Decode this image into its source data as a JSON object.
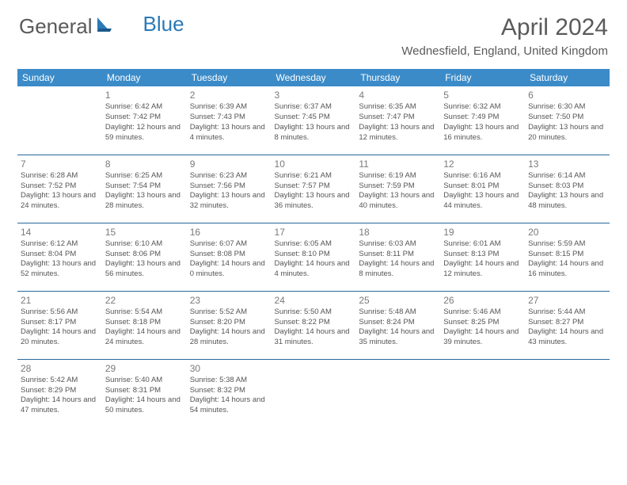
{
  "logo": {
    "text1": "General",
    "text2": "Blue"
  },
  "title": "April 2024",
  "location": "Wednesfield, England, United Kingdom",
  "colors": {
    "header_bg": "#3b8bc8",
    "header_text": "#ffffff",
    "border": "#2a6a9a",
    "body_text": "#555555",
    "daynum": "#7a7a7a",
    "title_text": "#5a5a5a",
    "logo_blue": "#2a7ab8",
    "background": "#ffffff"
  },
  "typography": {
    "title_fontsize": 30,
    "location_fontsize": 15,
    "header_fontsize": 12,
    "daynum_fontsize": 12,
    "cell_fontsize": 9.5,
    "logo_fontsize": 26
  },
  "columns": [
    "Sunday",
    "Monday",
    "Tuesday",
    "Wednesday",
    "Thursday",
    "Friday",
    "Saturday"
  ],
  "weeks": [
    [
      null,
      {
        "n": "1",
        "sr": "6:42 AM",
        "ss": "7:42 PM",
        "dl": "12 hours and 59 minutes."
      },
      {
        "n": "2",
        "sr": "6:39 AM",
        "ss": "7:43 PM",
        "dl": "13 hours and 4 minutes."
      },
      {
        "n": "3",
        "sr": "6:37 AM",
        "ss": "7:45 PM",
        "dl": "13 hours and 8 minutes."
      },
      {
        "n": "4",
        "sr": "6:35 AM",
        "ss": "7:47 PM",
        "dl": "13 hours and 12 minutes."
      },
      {
        "n": "5",
        "sr": "6:32 AM",
        "ss": "7:49 PM",
        "dl": "13 hours and 16 minutes."
      },
      {
        "n": "6",
        "sr": "6:30 AM",
        "ss": "7:50 PM",
        "dl": "13 hours and 20 minutes."
      }
    ],
    [
      {
        "n": "7",
        "sr": "6:28 AM",
        "ss": "7:52 PM",
        "dl": "13 hours and 24 minutes."
      },
      {
        "n": "8",
        "sr": "6:25 AM",
        "ss": "7:54 PM",
        "dl": "13 hours and 28 minutes."
      },
      {
        "n": "9",
        "sr": "6:23 AM",
        "ss": "7:56 PM",
        "dl": "13 hours and 32 minutes."
      },
      {
        "n": "10",
        "sr": "6:21 AM",
        "ss": "7:57 PM",
        "dl": "13 hours and 36 minutes."
      },
      {
        "n": "11",
        "sr": "6:19 AM",
        "ss": "7:59 PM",
        "dl": "13 hours and 40 minutes."
      },
      {
        "n": "12",
        "sr": "6:16 AM",
        "ss": "8:01 PM",
        "dl": "13 hours and 44 minutes."
      },
      {
        "n": "13",
        "sr": "6:14 AM",
        "ss": "8:03 PM",
        "dl": "13 hours and 48 minutes."
      }
    ],
    [
      {
        "n": "14",
        "sr": "6:12 AM",
        "ss": "8:04 PM",
        "dl": "13 hours and 52 minutes."
      },
      {
        "n": "15",
        "sr": "6:10 AM",
        "ss": "8:06 PM",
        "dl": "13 hours and 56 minutes."
      },
      {
        "n": "16",
        "sr": "6:07 AM",
        "ss": "8:08 PM",
        "dl": "14 hours and 0 minutes."
      },
      {
        "n": "17",
        "sr": "6:05 AM",
        "ss": "8:10 PM",
        "dl": "14 hours and 4 minutes."
      },
      {
        "n": "18",
        "sr": "6:03 AM",
        "ss": "8:11 PM",
        "dl": "14 hours and 8 minutes."
      },
      {
        "n": "19",
        "sr": "6:01 AM",
        "ss": "8:13 PM",
        "dl": "14 hours and 12 minutes."
      },
      {
        "n": "20",
        "sr": "5:59 AM",
        "ss": "8:15 PM",
        "dl": "14 hours and 16 minutes."
      }
    ],
    [
      {
        "n": "21",
        "sr": "5:56 AM",
        "ss": "8:17 PM",
        "dl": "14 hours and 20 minutes."
      },
      {
        "n": "22",
        "sr": "5:54 AM",
        "ss": "8:18 PM",
        "dl": "14 hours and 24 minutes."
      },
      {
        "n": "23",
        "sr": "5:52 AM",
        "ss": "8:20 PM",
        "dl": "14 hours and 28 minutes."
      },
      {
        "n": "24",
        "sr": "5:50 AM",
        "ss": "8:22 PM",
        "dl": "14 hours and 31 minutes."
      },
      {
        "n": "25",
        "sr": "5:48 AM",
        "ss": "8:24 PM",
        "dl": "14 hours and 35 minutes."
      },
      {
        "n": "26",
        "sr": "5:46 AM",
        "ss": "8:25 PM",
        "dl": "14 hours and 39 minutes."
      },
      {
        "n": "27",
        "sr": "5:44 AM",
        "ss": "8:27 PM",
        "dl": "14 hours and 43 minutes."
      }
    ],
    [
      {
        "n": "28",
        "sr": "5:42 AM",
        "ss": "8:29 PM",
        "dl": "14 hours and 47 minutes."
      },
      {
        "n": "29",
        "sr": "5:40 AM",
        "ss": "8:31 PM",
        "dl": "14 hours and 50 minutes."
      },
      {
        "n": "30",
        "sr": "5:38 AM",
        "ss": "8:32 PM",
        "dl": "14 hours and 54 minutes."
      },
      null,
      null,
      null,
      null
    ]
  ],
  "labels": {
    "sunrise": "Sunrise: ",
    "sunset": "Sunset: ",
    "daylight": "Daylight: "
  }
}
